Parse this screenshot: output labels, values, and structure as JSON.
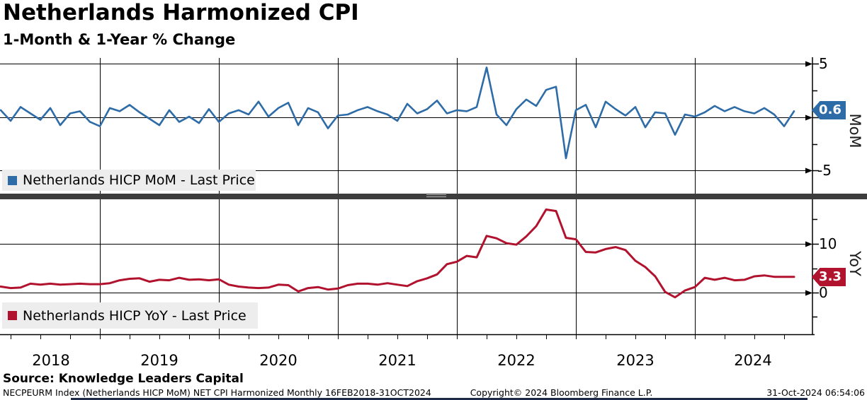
{
  "header": {
    "title": "Netherlands Harmonized CPI",
    "subtitle": "1-Month & 1-Year % Change"
  },
  "panels": {
    "mom": {
      "legend": "Netherlands HICP MoM - Last Price",
      "axis_label": "MoM",
      "last_value": "0.6",
      "color": "#2e6ca8",
      "ytick_labels": [
        "5",
        "-5"
      ]
    },
    "yoy": {
      "legend": "Netherlands HICP YoY - Last Price",
      "axis_label": "YoY",
      "last_value": "3.3",
      "color": "#b1122d",
      "ytick_labels": [
        "10",
        "0"
      ]
    }
  },
  "x_axis": {
    "years": [
      "2018",
      "2019",
      "2020",
      "2021",
      "2022",
      "2023",
      "2024"
    ]
  },
  "footer": {
    "source": "Source: Knowledge Leaders Capital",
    "security": "NECPEURM Index (Netherlands HICP MoM) NET CPI Harmonized  Monthly 16FEB2018-31OCT2024",
    "copyright": "Copyright© 2024 Bloomberg Finance L.P.",
    "timestamp": "31-Oct-2024 06:54:06"
  },
  "chart_data": [
    {
      "type": "line",
      "name": "Netherlands HICP MoM - Last Price",
      "panel": "top",
      "color": "#2e6ca8",
      "frequency": "monthly",
      "x_start": "2018-02",
      "x_end": "2024-10",
      "x_year_ticks": [
        2018,
        2019,
        2020,
        2021,
        2022,
        2023,
        2024
      ],
      "yticks": [
        5,
        0,
        -5
      ],
      "ylim": [
        -6.9,
        5.6
      ],
      "last_price": 0.6,
      "values": [
        0.7,
        -0.3,
        1.0,
        0.4,
        -0.2,
        0.9,
        -0.7,
        0.4,
        0.6,
        -0.4,
        -0.8,
        0.9,
        0.6,
        1.2,
        0.5,
        -0.1,
        -0.7,
        0.7,
        -0.4,
        0.1,
        -0.5,
        0.8,
        -0.4,
        0.4,
        0.7,
        0.3,
        1.5,
        0.1,
        0.9,
        1.4,
        -0.7,
        0.9,
        0.5,
        -1.0,
        0.2,
        0.3,
        0.7,
        1.0,
        0.6,
        0.3,
        -0.3,
        1.3,
        0.4,
        0.8,
        1.6,
        0.4,
        0.7,
        0.6,
        1.0,
        4.7,
        0.3,
        -0.7,
        0.8,
        1.7,
        1.1,
        2.6,
        2.9,
        -3.8,
        0.7,
        1.2,
        -0.9,
        1.5,
        0.8,
        0.2,
        1.0,
        -0.9,
        0.5,
        0.4,
        -1.6,
        0.3,
        0.1,
        0.5,
        1.1,
        0.6,
        1.0,
        0.6,
        0.4,
        0.9,
        0.3,
        -0.8,
        0.6
      ]
    },
    {
      "type": "line",
      "name": "Netherlands HICP YoY - Last Price",
      "panel": "bottom",
      "color": "#b1122d",
      "frequency": "monthly",
      "x_start": "2018-02",
      "x_end": "2024-10",
      "x_year_ticks": [
        2018,
        2019,
        2020,
        2021,
        2022,
        2023,
        2024
      ],
      "yticks": [
        10,
        0
      ],
      "ylim": [
        -8.5,
        19.2
      ],
      "last_price": 3.3,
      "values": [
        1.3,
        1.0,
        1.1,
        1.9,
        1.7,
        1.9,
        1.7,
        1.8,
        1.9,
        1.8,
        1.8,
        2.0,
        2.6,
        2.9,
        3.0,
        2.3,
        2.7,
        2.6,
        3.1,
        2.7,
        2.8,
        2.6,
        2.8,
        1.7,
        1.3,
        1.1,
        1.0,
        1.1,
        1.7,
        1.6,
        0.3,
        1.0,
        1.2,
        0.7,
        0.9,
        1.6,
        1.9,
        1.9,
        1.7,
        2.0,
        1.7,
        1.4,
        2.4,
        3.0,
        3.8,
        5.9,
        6.4,
        7.6,
        7.3,
        11.7,
        11.2,
        10.2,
        9.9,
        11.6,
        13.7,
        17.1,
        16.8,
        11.3,
        11.0,
        8.4,
        8.3,
        9.0,
        9.4,
        8.8,
        6.6,
        5.3,
        3.4,
        0.2,
        -0.9,
        0.5,
        1.2,
        3.1,
        2.7,
        3.1,
        2.6,
        2.7,
        3.4,
        3.6,
        3.3,
        3.3,
        3.3
      ]
    }
  ]
}
